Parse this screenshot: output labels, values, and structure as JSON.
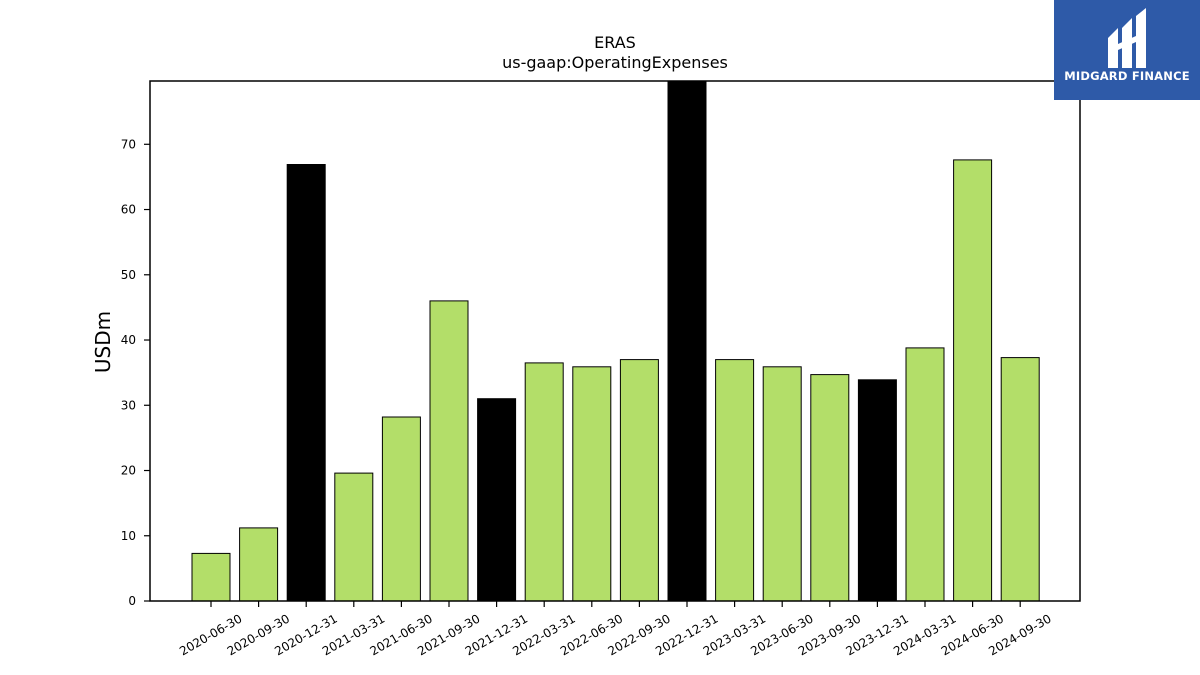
{
  "brand": {
    "name": "MIDGARD FINANCE",
    "logo_icon": "midgard-logo-icon",
    "bg_color": "#2e5aa8"
  },
  "chart_data": {
    "type": "bar",
    "title": "ERAS",
    "subtitle": "us-gaap:OperatingExpenses",
    "xlabel": "",
    "ylabel": "USDm",
    "ylim": [
      0,
      79.7
    ],
    "yticks": [
      0,
      10,
      20,
      30,
      40,
      50,
      60,
      70
    ],
    "grid": false,
    "categories": [
      "2020-06-30",
      "2020-09-30",
      "2020-12-31",
      "2021-03-31",
      "2021-06-30",
      "2021-09-30",
      "2021-12-31",
      "2022-03-31",
      "2022-06-30",
      "2022-09-30",
      "2022-12-31",
      "2023-03-31",
      "2023-06-30",
      "2023-09-30",
      "2023-12-31",
      "2024-03-31",
      "2024-06-30",
      "2024-09-30"
    ],
    "values": [
      7.3,
      11.2,
      66.9,
      19.6,
      28.2,
      46.0,
      31.0,
      36.5,
      35.9,
      37.0,
      79.7,
      37.0,
      35.9,
      34.7,
      33.9,
      38.8,
      67.6,
      37.3
    ],
    "colors": {
      "quarter": "#b3de69",
      "year_end": "#000000",
      "edge": "#000000"
    },
    "bar_kinds": [
      "quarter",
      "quarter",
      "year_end",
      "quarter",
      "quarter",
      "quarter",
      "year_end",
      "quarter",
      "quarter",
      "quarter",
      "year_end",
      "quarter",
      "quarter",
      "quarter",
      "year_end",
      "quarter",
      "quarter",
      "quarter"
    ]
  }
}
